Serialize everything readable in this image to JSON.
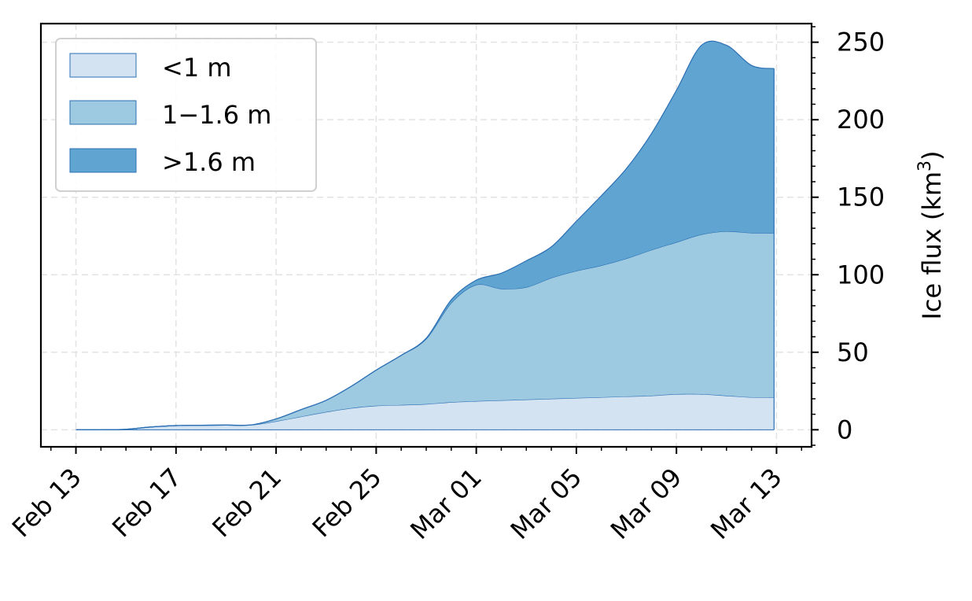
{
  "chart_data": {
    "type": "area",
    "stacked": true,
    "x": [
      "Feb 13",
      "Feb 14",
      "Feb 15",
      "Feb 16",
      "Feb 17",
      "Feb 18",
      "Feb 19",
      "Feb 20",
      "Feb 21",
      "Feb 22",
      "Feb 23",
      "Feb 24",
      "Feb 25",
      "Feb 26",
      "Feb 27",
      "Feb 28",
      "Mar 01",
      "Mar 02",
      "Mar 03",
      "Mar 04",
      "Mar 05",
      "Mar 06",
      "Mar 07",
      "Mar 08",
      "Mar 09",
      "Mar 10",
      "Mar 11",
      "Mar 12",
      "Mar 12 22:00"
    ],
    "x_days": [
      0,
      1,
      2,
      3,
      4,
      5,
      6,
      7,
      8,
      9,
      10,
      11,
      12,
      13,
      14,
      15,
      16,
      17,
      18,
      19,
      20,
      21,
      22,
      23,
      24,
      25,
      26,
      27,
      27.9
    ],
    "x_tick_labels": [
      "Feb 13",
      "Feb 17",
      "Feb 21",
      "Feb 25",
      "Mar 01",
      "Mar 05",
      "Mar 09",
      "Mar 13"
    ],
    "series": [
      {
        "name": "<1 m",
        "color": "#d3e3f2",
        "values": [
          0,
          0,
          0.3,
          1.8,
          2.7,
          2.9,
          3.0,
          3.1,
          5.5,
          8.5,
          11.5,
          14.0,
          15.5,
          16.0,
          16.6,
          17.8,
          18.5,
          19.0,
          19.5,
          20.0,
          20.5,
          21.0,
          21.5,
          22.0,
          23.0,
          23.0,
          22.0,
          21.0,
          21.0
        ]
      },
      {
        "name": "1−1.6 m",
        "color": "#9ecae1",
        "values": [
          0,
          0,
          0,
          0,
          0,
          0,
          0,
          0,
          1.5,
          4.5,
          7.5,
          14.0,
          23.0,
          32.0,
          42.0,
          64.0,
          75.0,
          72.0,
          72.5,
          78.0,
          82.0,
          85.0,
          89.0,
          94.0,
          98.0,
          103.0,
          106.0,
          106.0,
          106.0
        ]
      },
      {
        "name": ">1.6 m",
        "color": "#60a5d1",
        "values": [
          0,
          0,
          0,
          0,
          0,
          0,
          0,
          0,
          0,
          0,
          0,
          0,
          0,
          0,
          0.5,
          2.0,
          3.0,
          10.0,
          17.0,
          20.0,
          32.0,
          45.0,
          58.0,
          75.0,
          98.0,
          122.0,
          120.0,
          108.0,
          106.0
        ]
      }
    ],
    "xlabel": "",
    "ylabel": "Ice flux (km",
    "ylabel_superscript": "3",
    "ylabel_close": ")",
    "ylim": [
      -11,
      262
    ],
    "y_ticks": [
      0,
      50,
      100,
      150,
      200,
      250
    ],
    "xlim_days": [
      -1.4,
      29.4
    ],
    "grid": true,
    "y_axis_side": "right",
    "legend_position": "top-left",
    "line_color": "#2b6fb4"
  }
}
